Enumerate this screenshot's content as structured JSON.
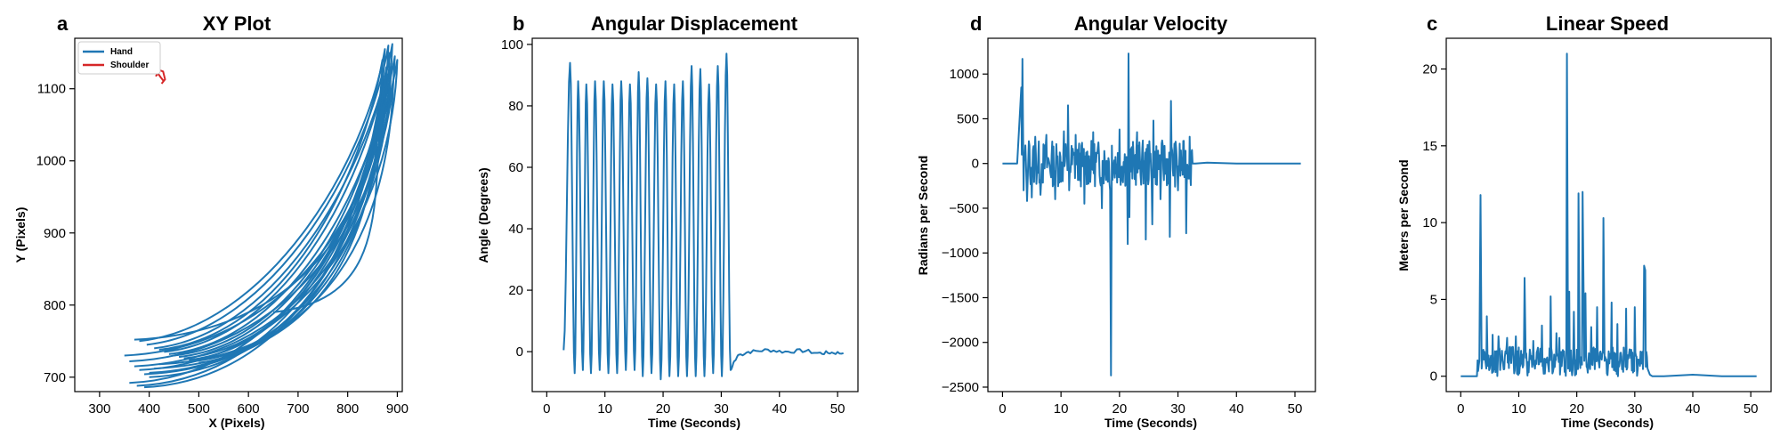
{
  "chart_data": [
    {
      "type": "line",
      "panel_letter": "a",
      "title": "XY Plot",
      "xlabel": "X (Pixels)",
      "ylabel": "Y (Pixels)",
      "xlim": [
        250,
        910
      ],
      "ylim": [
        680,
        1170
      ],
      "xticks": [
        300,
        400,
        500,
        600,
        700,
        800,
        900
      ],
      "yticks": [
        700,
        800,
        900,
        1000,
        1100
      ],
      "grid": false,
      "legend": "upper-left",
      "series": [
        {
          "name": "Hand",
          "color": "#1f77b4",
          "points": [
            [
              430,
              1110
            ],
            [
              423,
              1116
            ],
            [
              418,
              1121
            ],
            [
              414,
              1118
            ],
            [
              420,
              1126
            ],
            [
              428,
              1124
            ],
            [
              432,
              1113
            ],
            [
              425,
              1107
            ]
          ]
        },
        {
          "name": "Shoulder",
          "color": "#d62728",
          "points": [
            [
              430,
              1110
            ],
            [
              423,
              1116
            ],
            [
              418,
              1121
            ],
            [
              414,
              1118
            ],
            [
              420,
              1126
            ],
            [
              428,
              1124
            ],
            [
              432,
              1113
            ],
            [
              425,
              1107
            ]
          ]
        }
      ],
      "hand_loops": [
        {
          "x": 875,
          "y": 1155,
          "near": [
            380,
            750
          ],
          "far": [
            360,
            692
          ]
        },
        {
          "x": 882,
          "y": 1160,
          "near": [
            395,
            745
          ],
          "far": [
            375,
            688
          ]
        },
        {
          "x": 890,
          "y": 1162,
          "near": [
            410,
            740
          ],
          "far": [
            390,
            686
          ]
        },
        {
          "x": 870,
          "y": 1140,
          "near": [
            420,
            738
          ],
          "far": [
            400,
            700
          ]
        },
        {
          "x": 885,
          "y": 1150,
          "near": [
            430,
            735
          ],
          "far": [
            350,
            730
          ]
        },
        {
          "x": 895,
          "y": 1145,
          "near": [
            440,
            732
          ],
          "far": [
            360,
            722
          ]
        },
        {
          "x": 880,
          "y": 1120,
          "near": [
            450,
            730
          ],
          "far": [
            370,
            715
          ]
        },
        {
          "x": 900,
          "y": 1140,
          "near": [
            460,
            728
          ],
          "far": [
            380,
            710
          ]
        },
        {
          "x": 873,
          "y": 1100,
          "near": [
            470,
            726
          ],
          "far": [
            390,
            704
          ]
        },
        {
          "x": 888,
          "y": 1135,
          "near": [
            480,
            724
          ],
          "far": [
            400,
            706
          ]
        },
        {
          "x": 866,
          "y": 1090,
          "near": [
            490,
            722
          ],
          "far": [
            410,
            712
          ]
        },
        {
          "x": 892,
          "y": 1110,
          "near": [
            500,
            720
          ],
          "far": [
            420,
            718
          ]
        },
        {
          "x": 878,
          "y": 1130,
          "near": [
            650,
            790
          ],
          "far": [
            370,
            752
          ]
        }
      ]
    },
    {
      "type": "line",
      "panel_letter": "b",
      "title": "Angular Displacement",
      "xlabel": "Time (Seconds)",
      "ylabel": "Angle (Degrees)",
      "xlim": [
        -2.5,
        53.5
      ],
      "ylim": [
        -13,
        102
      ],
      "xticks": [
        0,
        10,
        20,
        30,
        40,
        50
      ],
      "yticks": [
        0,
        20,
        40,
        60,
        80,
        100
      ],
      "grid": false,
      "series": [
        {
          "name": "",
          "color": "#1f77b4",
          "x": [
            0,
            1,
            2,
            2.9,
            3.4,
            4.6,
            5.4,
            6.8,
            7.6,
            9.0,
            9.8,
            11.1,
            11.9,
            13.3,
            14.1,
            15.5,
            16.3,
            17.7,
            18.5,
            19.9,
            20.7,
            22.1,
            22.9,
            24.3,
            25.1,
            26.5,
            27.3,
            28.7,
            29.5,
            30.9,
            31.7,
            32.5,
            33.4,
            35,
            37,
            39,
            41,
            43,
            45,
            47,
            49,
            51
          ],
          "y": [
            0,
            0.5,
            0,
            0.5,
            0,
            94,
            -7,
            88,
            -6,
            87,
            -8,
            88,
            -7,
            88,
            -6,
            87,
            -7,
            91,
            -8,
            89,
            -9,
            88,
            -8,
            87,
            -8,
            88,
            -8,
            93,
            -7,
            92,
            -8,
            97,
            -6,
            -1,
            0,
            0.5,
            0,
            0.3,
            -0.5,
            -0.2,
            -0.5,
            -0.3
          ]
        }
      ],
      "phases": [
        {
          "t": 2.9,
          "y": 0.5
        },
        {
          "t": 4.0,
          "y": 94
        },
        {
          "t": 4.8,
          "y": -7
        },
        {
          "t": 5.4,
          "y": 88
        },
        {
          "t": 6.2,
          "y": -6
        },
        {
          "t": 6.8,
          "y": 87
        },
        {
          "t": 7.6,
          "y": -7
        },
        {
          "t": 8.3,
          "y": 88
        },
        {
          "t": 9.1,
          "y": -6
        },
        {
          "t": 9.8,
          "y": 88
        },
        {
          "t": 10.6,
          "y": -7
        },
        {
          "t": 11.3,
          "y": 87
        },
        {
          "t": 12.1,
          "y": -7
        },
        {
          "t": 12.8,
          "y": 88
        },
        {
          "t": 13.6,
          "y": -6
        },
        {
          "t": 14.3,
          "y": 87
        },
        {
          "t": 15.1,
          "y": -6
        },
        {
          "t": 15.8,
          "y": 91
        },
        {
          "t": 16.5,
          "y": -8
        },
        {
          "t": 17.3,
          "y": 89
        },
        {
          "t": 18.0,
          "y": -7
        },
        {
          "t": 18.8,
          "y": 87
        },
        {
          "t": 19.6,
          "y": -9
        },
        {
          "t": 20.4,
          "y": 88
        },
        {
          "t": 21.1,
          "y": -8
        },
        {
          "t": 21.9,
          "y": 87
        },
        {
          "t": 22.6,
          "y": -8
        },
        {
          "t": 23.4,
          "y": 88
        },
        {
          "t": 24.1,
          "y": -8
        },
        {
          "t": 24.9,
          "y": 93
        },
        {
          "t": 25.6,
          "y": -8
        },
        {
          "t": 26.4,
          "y": 92
        },
        {
          "t": 27.1,
          "y": -8
        },
        {
          "t": 27.9,
          "y": 87
        },
        {
          "t": 28.6,
          "y": -7
        },
        {
          "t": 29.4,
          "y": 93
        },
        {
          "t": 30.1,
          "y": -8
        },
        {
          "t": 30.9,
          "y": 97
        },
        {
          "t": 31.6,
          "y": -6
        },
        {
          "t": 32.3,
          "y": -3
        },
        {
          "t": 33.0,
          "y": -1
        },
        {
          "t": 35,
          "y": 0
        },
        {
          "t": 38,
          "y": 0.5
        },
        {
          "t": 41,
          "y": 0
        },
        {
          "t": 44,
          "y": 0.3
        },
        {
          "t": 47,
          "y": -0.5
        },
        {
          "t": 49,
          "y": -0.3
        },
        {
          "t": 51,
          "y": -0.5
        }
      ]
    },
    {
      "type": "line",
      "panel_letter": "d",
      "title": "Angular Velocity",
      "xlabel": "Time (Seconds)",
      "ylabel": "Radians per Second",
      "xlim": [
        -2.5,
        53.5
      ],
      "ylim": [
        -2550,
        1400
      ],
      "xticks": [
        0,
        10,
        20,
        30,
        40,
        50
      ],
      "yticks": [
        -2500,
        -2000,
        -1500,
        -1000,
        -500,
        0,
        500,
        1000
      ],
      "grid": false,
      "series": [
        {
          "name": "",
          "color": "#1f77b4",
          "x": [
            0,
            2.5,
            3.2,
            3.3,
            3.4,
            3.6,
            4.2,
            4.5,
            5.0,
            5.6,
            6.5,
            7.5,
            9.0,
            10.5,
            11.2,
            11.4,
            12.5,
            14,
            15.5,
            17,
            18.4,
            18.55,
            18.7,
            20,
            21.4,
            21.55,
            21.7,
            23,
            24.5,
            25.6,
            25.8,
            27,
            28.6,
            28.8,
            30,
            31.4,
            32,
            32.5,
            33,
            35,
            40,
            45,
            51
          ],
          "y": [
            0,
            0,
            850,
            100,
            1170,
            -300,
            -420,
            250,
            -380,
            300,
            -350,
            320,
            -400,
            360,
            650,
            -300,
            320,
            -450,
            350,
            -500,
            -300,
            -2370,
            200,
            380,
            -900,
            1230,
            -600,
            350,
            -850,
            -680,
            480,
            -400,
            -820,
            700,
            -300,
            -780,
            300,
            0,
            0,
            10,
            0,
            0,
            0
          ]
        }
      ]
    },
    {
      "type": "line",
      "panel_letter": "c",
      "title": "Linear Speed",
      "xlabel": "Time (Seconds)",
      "ylabel": "Meters per Second",
      "xlim": [
        -2.5,
        53.5
      ],
      "ylim": [
        -1,
        22
      ],
      "xticks": [
        0,
        10,
        20,
        30,
        40,
        50
      ],
      "yticks": [
        0,
        5,
        10,
        15,
        20
      ],
      "grid": false,
      "series": [
        {
          "name": "",
          "color": "#1f77b4",
          "x": [
            0,
            2.8,
            3.2,
            3.4,
            3.6,
            4.5,
            5.5,
            6.5,
            8,
            9.5,
            11.0,
            11.2,
            12.5,
            14,
            15.5,
            16.5,
            17,
            18.3,
            18.5,
            18.7,
            19.5,
            20.3,
            20.5,
            21.0,
            21.3,
            21.5,
            22.5,
            23.5,
            24.6,
            24.8,
            26,
            27,
            28.5,
            30,
            31.6,
            31.8,
            32.2,
            32.6,
            33,
            35,
            40,
            45,
            51
          ],
          "y": [
            0,
            0,
            1,
            11.8,
            0.5,
            3.9,
            2.7,
            2.6,
            2.5,
            2.6,
            6.4,
            1.2,
            2.3,
            3.3,
            5.2,
            2.8,
            2.5,
            21,
            0.5,
            5.5,
            4.2,
            11.9,
            1,
            12,
            1,
            5.4,
            3.2,
            4.5,
            10.3,
            1,
            4.8,
            3.4,
            4.4,
            4.5,
            7.2,
            6.9,
            0.5,
            0.1,
            0,
            0,
            0.1,
            0,
            0
          ]
        }
      ]
    }
  ]
}
